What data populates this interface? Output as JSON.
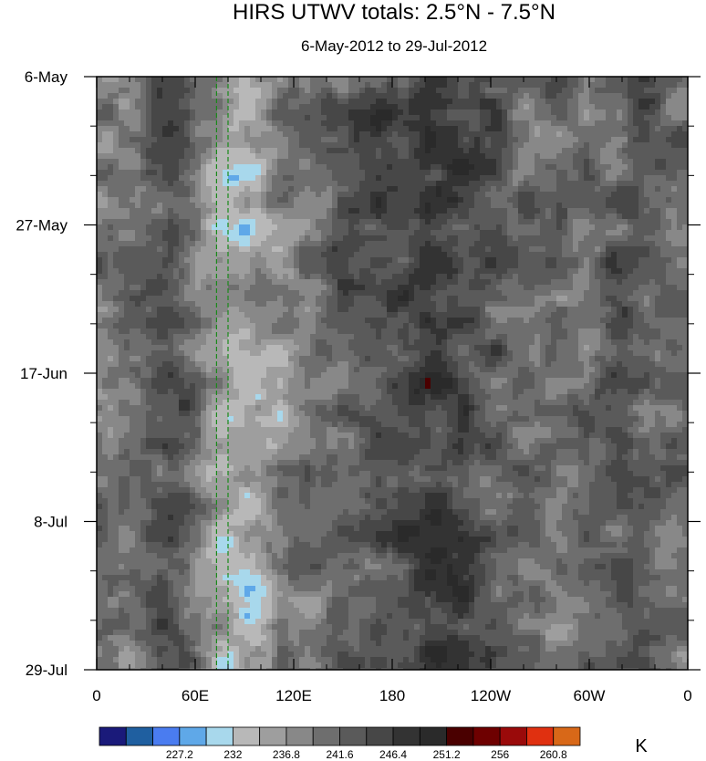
{
  "chart_data": {
    "type": "heatmap",
    "title": "HIRS UTWV totals: 2.5°N - 7.5°N",
    "subtitle": "6-May-2012 to 29-Jul-2012",
    "xlabel": "",
    "ylabel": "",
    "x_tick_labels": [
      "0",
      "60E",
      "120E",
      "180",
      "120W",
      "60W",
      "0"
    ],
    "y_tick_labels": [
      "6-May",
      "27-May",
      "17-Jun",
      "8-Jul",
      "29-Jul"
    ],
    "unit": "K",
    "colorbar": {
      "labels": [
        "227.2",
        "232",
        "236.8",
        "241.6",
        "246.4",
        "251.2",
        "256",
        "260.8"
      ],
      "colors": [
        "#1a1a7a",
        "#1f5fa0",
        "#4a7cf0",
        "#5fa8e8",
        "#a8d8ec",
        "#b8b8b8",
        "#9e9e9e",
        "#888888",
        "#6e6e6e",
        "#5a5a5a",
        "#474747",
        "#333333",
        "#2a2a2a",
        "#4a0000",
        "#6e0000",
        "#9a0a0a",
        "#e03010",
        "#d86818"
      ]
    },
    "grid": false
  }
}
